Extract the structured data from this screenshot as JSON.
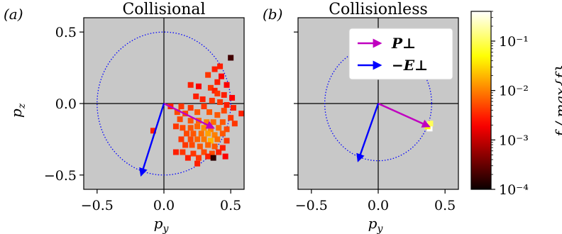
{
  "chart_data": [
    {
      "type": "scatter",
      "panel_label": "(a)",
      "title": "Collisional",
      "xlabel": "p_y",
      "ylabel": "p_z",
      "xlim": [
        -0.6,
        0.6
      ],
      "ylim": [
        -0.6,
        0.6
      ],
      "xticks": [
        {
          "v": -0.5,
          "label": "−0.5"
        },
        {
          "v": 0.0,
          "label": "0.0"
        },
        {
          "v": 0.5,
          "label": "0.5"
        }
      ],
      "yticks": [
        {
          "v": 0.5,
          "label": "0.5"
        },
        {
          "v": 0.0,
          "label": "0.0"
        },
        {
          "v": -0.5,
          "label": "−0.5"
        }
      ],
      "show_ylabel": true,
      "background": "#c8c8c8",
      "circle_radius": 0.5,
      "arrows": [
        {
          "name": "P_perp",
          "from": [
            0,
            0
          ],
          "to": [
            0.37,
            -0.17
          ],
          "color": "#c000c0"
        },
        {
          "name": "E_perp",
          "from": [
            0,
            0
          ],
          "to": [
            -0.17,
            -0.5
          ],
          "color": "#0000ff"
        }
      ],
      "points": [
        [
          0.5,
          0.32,
          0.0002
        ],
        [
          0.42,
          0.26,
          0.003
        ],
        [
          0.38,
          0.24,
          0.003
        ],
        [
          0.33,
          0.2,
          0.004
        ],
        [
          0.43,
          0.19,
          0.002
        ],
        [
          0.4,
          0.15,
          0.003
        ],
        [
          0.2,
          0.13,
          0.003
        ],
        [
          0.26,
          0.12,
          0.002
        ],
        [
          0.35,
          0.11,
          0.004
        ],
        [
          0.47,
          0.13,
          0.002
        ],
        [
          0.38,
          0.09,
          0.003
        ],
        [
          0.4,
          0.07,
          0.004
        ],
        [
          0.45,
          0.06,
          0.003
        ],
        [
          0.51,
          0.04,
          0.002
        ],
        [
          0.24,
          0.05,
          0.003
        ],
        [
          0.29,
          0.03,
          0.003
        ],
        [
          0.42,
          0.01,
          0.004
        ],
        [
          0.47,
          -0.01,
          0.003
        ],
        [
          0.36,
          0.02,
          0.004
        ],
        [
          0.05,
          -0.02,
          0.003
        ],
        [
          0.13,
          -0.02,
          0.004
        ],
        [
          0.2,
          -0.03,
          0.004
        ],
        [
          0.3,
          -0.02,
          0.004
        ],
        [
          0.45,
          -0.05,
          0.005
        ],
        [
          0.52,
          -0.03,
          0.003
        ],
        [
          0.58,
          -0.07,
          0.003
        ],
        [
          0.1,
          -0.06,
          0.005
        ],
        [
          0.16,
          -0.07,
          0.005
        ],
        [
          0.25,
          -0.06,
          0.006
        ],
        [
          0.34,
          -0.06,
          0.006
        ],
        [
          0.4,
          -0.08,
          0.006
        ],
        [
          0.5,
          -0.1,
          0.004
        ],
        [
          0.12,
          -0.11,
          0.005
        ],
        [
          0.2,
          -0.12,
          0.006
        ],
        [
          0.26,
          -0.12,
          0.007
        ],
        [
          0.32,
          -0.13,
          0.01
        ],
        [
          0.37,
          -0.13,
          0.008
        ],
        [
          0.44,
          -0.13,
          0.006
        ],
        [
          0.53,
          -0.14,
          0.004
        ],
        [
          0.09,
          -0.16,
          0.004
        ],
        [
          0.14,
          -0.17,
          0.005
        ],
        [
          0.2,
          -0.17,
          0.006
        ],
        [
          0.25,
          -0.16,
          0.007
        ],
        [
          0.3,
          -0.17,
          0.012
        ],
        [
          0.35,
          -0.18,
          0.01
        ],
        [
          0.41,
          -0.17,
          0.008
        ],
        [
          0.47,
          -0.18,
          0.005
        ],
        [
          -0.08,
          -0.19,
          0.003
        ],
        [
          0.17,
          -0.21,
          0.005
        ],
        [
          0.22,
          -0.21,
          0.006
        ],
        [
          0.28,
          -0.21,
          0.008
        ],
        [
          0.33,
          -0.21,
          0.015
        ],
        [
          0.38,
          -0.22,
          0.01
        ],
        [
          0.44,
          -0.21,
          0.006
        ],
        [
          0.13,
          -0.25,
          0.004
        ],
        [
          0.2,
          -0.25,
          0.005
        ],
        [
          0.25,
          -0.25,
          0.007
        ],
        [
          0.3,
          -0.25,
          0.009
        ],
        [
          0.35,
          -0.26,
          0.02
        ],
        [
          0.4,
          -0.25,
          0.008
        ],
        [
          0.47,
          -0.26,
          0.004
        ],
        [
          0.16,
          -0.29,
          0.004
        ],
        [
          0.21,
          -0.29,
          0.005
        ],
        [
          0.27,
          -0.3,
          0.006
        ],
        [
          0.33,
          -0.29,
          0.007
        ],
        [
          0.38,
          -0.3,
          0.006
        ],
        [
          0.44,
          -0.31,
          0.003
        ],
        [
          0.09,
          -0.34,
          0.003
        ],
        [
          0.14,
          -0.34,
          0.004
        ],
        [
          0.22,
          -0.35,
          0.004
        ],
        [
          0.3,
          -0.34,
          0.005
        ],
        [
          0.36,
          -0.35,
          0.005
        ],
        [
          0.41,
          -0.34,
          0.003
        ],
        [
          0.18,
          -0.38,
          0.003
        ],
        [
          0.26,
          -0.38,
          0.004
        ],
        [
          0.33,
          -0.37,
          0.003
        ],
        [
          0.46,
          -0.37,
          0.002
        ],
        [
          0.25,
          -0.42,
          0.003
        ],
        [
          0.37,
          -0.38,
          0.00015
        ]
      ]
    },
    {
      "type": "scatter",
      "panel_label": "(b)",
      "title": "Collisionless",
      "xlabel": "p_y",
      "ylabel": "",
      "xlim": [
        -0.6,
        0.6
      ],
      "ylim": [
        -0.6,
        0.6
      ],
      "xticks": [
        {
          "v": -0.5,
          "label": "−0.5"
        },
        {
          "v": 0.0,
          "label": "0.0"
        },
        {
          "v": 0.5,
          "label": "0.5"
        }
      ],
      "yticks": [
        {
          "v": 0.5,
          "label": ""
        },
        {
          "v": 0.0,
          "label": ""
        },
        {
          "v": -0.5,
          "label": ""
        }
      ],
      "show_ylabel": false,
      "background": "#c8c8c8",
      "circle_radius": 0.4,
      "arrows": [
        {
          "name": "P_perp",
          "from": [
            0,
            0
          ],
          "to": [
            0.38,
            -0.16
          ],
          "color": "#c000c0"
        },
        {
          "name": "E_perp",
          "from": [
            0,
            0
          ],
          "to": [
            -0.15,
            -0.4
          ],
          "color": "#0000ff"
        }
      ],
      "points": [
        [
          0.38,
          -0.15,
          0.3
        ],
        [
          0.385,
          -0.175,
          0.6
        ],
        [
          0.37,
          -0.16,
          0.05
        ],
        [
          0.39,
          -0.14,
          0.1
        ]
      ]
    }
  ],
  "legend": {
    "entries": [
      {
        "label": "P⊥",
        "color": "#c000c0"
      },
      {
        "label": "−E⊥",
        "color": "#0000ff"
      }
    ],
    "placement": "upper-right of panel (b)"
  },
  "colorbar": {
    "label": "f / max{f}",
    "scale": "log",
    "range": [
      0.0001,
      0.4
    ],
    "ticks": [
      {
        "v": 0.1,
        "label": "10⁻¹"
      },
      {
        "v": 0.01,
        "label": "10⁻²"
      },
      {
        "v": 0.001,
        "label": "10⁻³"
      },
      {
        "v": 0.0001,
        "label": "10⁻⁴"
      }
    ],
    "colormap": "hot"
  }
}
